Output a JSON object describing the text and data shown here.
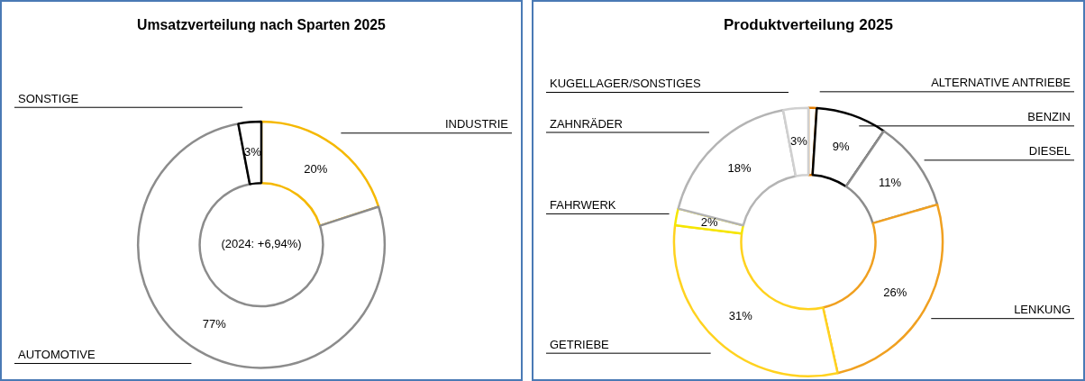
{
  "chart_data": [
    {
      "type": "donut",
      "title": "Umsatzverteilung nach Sparten 2025",
      "categories": [
        "INDUSTRIE",
        "AUTOMOTIVE",
        "SONSTIGE"
      ],
      "values": [
        20,
        77,
        3
      ],
      "colors": [
        "#f5b800",
        "#8c8c8c",
        "#000000"
      ],
      "value_labels": [
        "20%",
        "77%",
        "3%"
      ],
      "annotations": [
        "(2024: +6,94%)"
      ]
    },
    {
      "type": "donut",
      "title": "Produktverteilung 2025",
      "categories": [
        "ALTERNATIVE ANTRIEBE",
        "BENZIN",
        "DIESEL",
        "LENKUNG",
        "GETRIEBE",
        "FAHRWERK",
        "ZAHNRÄDER",
        "KUGELLAGER/SONSTIGES"
      ],
      "values": [
        1,
        8.5,
        11,
        26,
        30.5,
        2,
        18,
        3
      ],
      "colors": [
        "#e07b00",
        "#000000",
        "#8c8c8c",
        "#f0a020",
        "#ffd21f",
        "#f5e600",
        "#b4b4b4",
        "#d0d0d0"
      ],
      "value_labels": [
        null,
        "9%",
        "11%",
        "26%",
        "31%",
        "2%",
        "18%",
        "3%"
      ]
    }
  ]
}
